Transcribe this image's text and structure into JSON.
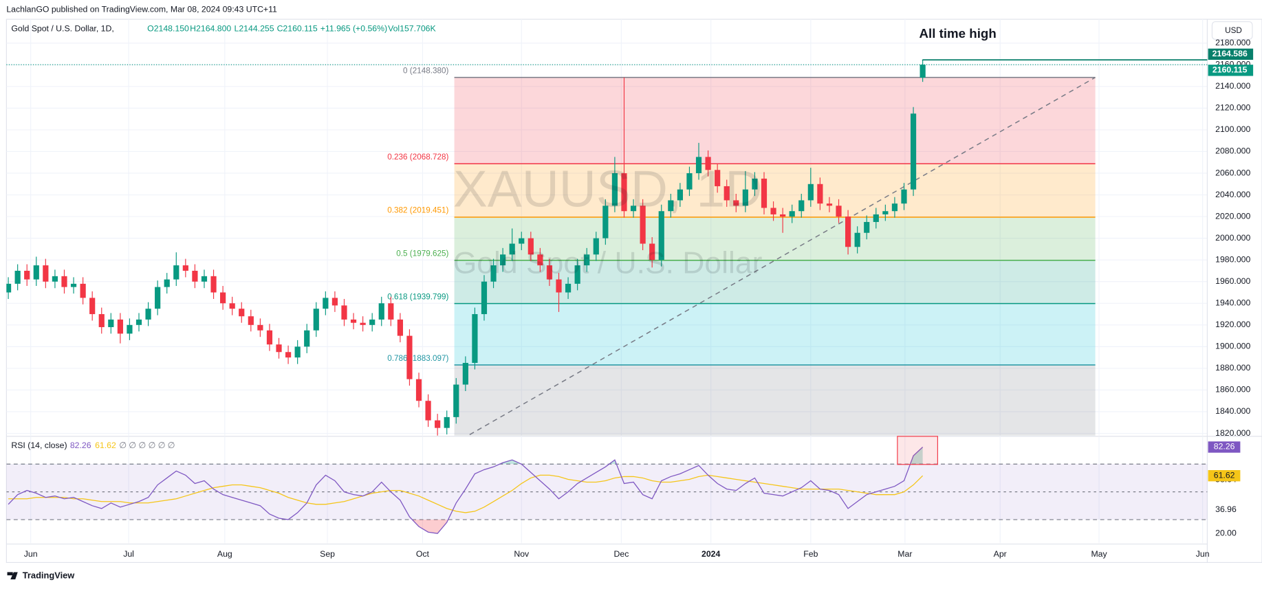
{
  "publisher": "LachlanGO published on TradingView.com, Mar 08, 2024 09:43 UTC+11",
  "brand": "TradingView",
  "currency": "USD",
  "watermark": [
    "XAUUSD, 1D",
    "Gold Spot / U.S. Dollar"
  ],
  "chart_data": [
    {
      "type": "candlestick",
      "title": "Gold Spot / U.S. Dollar, 1D,",
      "legend_values": [
        "O2148.150",
        "H2164.800",
        "L2144.255",
        "C2160.115",
        "+11.965 (+0.56%)",
        "Vol157.706K"
      ],
      "annotation": "All time high",
      "up_color": "#089981",
      "down_color": "#f23645",
      "grid": true,
      "xlim": [
        -0.2,
        128.5
      ],
      "xticks": [
        {
          "value": 2.4,
          "label": "Jun"
        },
        {
          "value": 12.9,
          "label": "Jul"
        },
        {
          "value": 23.2,
          "label": "Aug"
        },
        {
          "value": 34.2,
          "label": "Sep"
        },
        {
          "value": 44.4,
          "label": "Oct"
        },
        {
          "value": 55.0,
          "label": "Nov"
        },
        {
          "value": 65.7,
          "label": "Dec"
        },
        {
          "value": 75.3,
          "label": "2024"
        },
        {
          "value": 86.0,
          "label": "Feb"
        },
        {
          "value": 96.1,
          "label": "Mar"
        },
        {
          "value": 106.3,
          "label": "Apr"
        },
        {
          "value": 116.9,
          "label": "May"
        },
        {
          "value": 128.0,
          "label": "Jun"
        }
      ],
      "ylim": [
        1818,
        2202
      ],
      "yticks": [
        {
          "value": 1820,
          "label": "1820.000"
        },
        {
          "value": 1840,
          "label": "1840.000"
        },
        {
          "value": 1860,
          "label": "1860.000"
        },
        {
          "value": 1880,
          "label": "1880.000"
        },
        {
          "value": 1900,
          "label": "1900.000"
        },
        {
          "value": 1920,
          "label": "1920.000"
        },
        {
          "value": 1940,
          "label": "1940.000"
        },
        {
          "value": 1960,
          "label": "1960.000"
        },
        {
          "value": 1980,
          "label": "1980.000"
        },
        {
          "value": 2000,
          "label": "2000.000"
        },
        {
          "value": 2020,
          "label": "2020.000"
        },
        {
          "value": 2040,
          "label": "2040.000"
        },
        {
          "value": 2060,
          "label": "2060.000"
        },
        {
          "value": 2080,
          "label": "2080.000"
        },
        {
          "value": 2100,
          "label": "2100.000"
        },
        {
          "value": 2120,
          "label": "2120.000"
        },
        {
          "value": 2140,
          "label": "2140.000"
        },
        {
          "value": 2160,
          "label": "2160.000"
        },
        {
          "value": 2180,
          "label": "2180.000"
        }
      ],
      "open": [
        1950,
        1958,
        1970,
        1962,
        1975,
        1960,
        1965,
        1955,
        1958,
        1945,
        1930,
        1918,
        1925,
        1912,
        1920,
        1925,
        1935,
        1955,
        1962,
        1975,
        1970,
        1960,
        1965,
        1950,
        1940,
        1935,
        1928,
        1920,
        1915,
        1902,
        1895,
        1890,
        1900,
        1915,
        1935,
        1945,
        1938,
        1925,
        1922,
        1920,
        1925,
        1940,
        1925,
        1910,
        1870,
        1850,
        1832,
        1825,
        1835,
        1865,
        1885,
        1930,
        1960,
        1975,
        1985,
        1995,
        2000,
        1985,
        1975,
        1962,
        1950,
        1958,
        1975,
        1985,
        2000,
        2030,
        2060,
        2025,
        2030,
        1995,
        1980,
        2025,
        2035,
        2045,
        2060,
        2075,
        2063,
        2048,
        2035,
        2030,
        2045,
        2055,
        2028,
        2022,
        2020,
        2025,
        2035,
        2050,
        2032,
        2030,
        2020,
        1992,
        2005,
        2015,
        2022,
        2025,
        2032,
        2045,
        2148.15
      ],
      "high": [
        1964,
        1976,
        1976,
        1983,
        1981,
        1971,
        1971,
        1964,
        1964,
        1951,
        1936,
        1931,
        1931,
        1926,
        1931,
        1941,
        1961,
        1968,
        1987,
        1981,
        1976,
        1971,
        1971,
        1956,
        1946,
        1941,
        1934,
        1926,
        1921,
        1908,
        1901,
        1906,
        1921,
        1941,
        1951,
        1951,
        1944,
        1931,
        1928,
        1931,
        1946,
        1946,
        1931,
        1916,
        1876,
        1856,
        1838,
        1841,
        1871,
        1891,
        1936,
        1966,
        1981,
        1991,
        2009,
        2006,
        2006,
        1991,
        1981,
        1968,
        1964,
        1981,
        1991,
        2006,
        2036,
        2075,
        2148.38,
        2036,
        2036,
        2001,
        2031,
        2041,
        2051,
        2066,
        2088,
        2081,
        2069,
        2054,
        2041,
        2062,
        2061,
        2061,
        2034,
        2028,
        2031,
        2041,
        2065,
        2056,
        2038,
        2036,
        2026,
        2011,
        2021,
        2028,
        2031,
        2038,
        2051,
        2121,
        2164.8
      ],
      "low": [
        1944,
        1952,
        1956,
        1956,
        1954,
        1954,
        1949,
        1949,
        1939,
        1924,
        1912,
        1912,
        1903,
        1906,
        1914,
        1919,
        1929,
        1949,
        1956,
        1964,
        1954,
        1954,
        1944,
        1934,
        1929,
        1922,
        1914,
        1909,
        1896,
        1889,
        1884,
        1884,
        1894,
        1909,
        1929,
        1932,
        1919,
        1916,
        1914,
        1914,
        1919,
        1919,
        1904,
        1864,
        1844,
        1826,
        1810.7,
        1819,
        1829,
        1859,
        1879,
        1924,
        1954,
        1969,
        1979,
        1989,
        1979,
        1969,
        1956,
        1932,
        1944,
        1952,
        1969,
        1979,
        1994,
        2024,
        2019,
        2019,
        1989,
        1973,
        1974,
        2019,
        2029,
        2039,
        2054,
        2057,
        2042,
        2029,
        2024,
        2024,
        2039,
        2022,
        2016,
        2005,
        2014,
        2019,
        2029,
        2026,
        2024,
        2014,
        1985,
        1986,
        1999,
        2009,
        2016,
        2019,
        2026,
        2039,
        2144.255
      ],
      "close": [
        1958,
        1970,
        1962,
        1975,
        1960,
        1965,
        1955,
        1958,
        1945,
        1930,
        1918,
        1925,
        1912,
        1920,
        1925,
        1935,
        1955,
        1962,
        1975,
        1970,
        1960,
        1965,
        1950,
        1940,
        1935,
        1928,
        1920,
        1915,
        1902,
        1895,
        1890,
        1900,
        1915,
        1935,
        1945,
        1938,
        1925,
        1922,
        1920,
        1925,
        1940,
        1925,
        1910,
        1870,
        1850,
        1832,
        1825,
        1835,
        1865,
        1885,
        1930,
        1960,
        1975,
        1985,
        1995,
        2000,
        1985,
        1975,
        1962,
        1950,
        1958,
        1975,
        1985,
        2000,
        2030,
        2060,
        2025,
        2030,
        1995,
        1980,
        2025,
        2035,
        2045,
        2060,
        2075,
        2063,
        2048,
        2035,
        2030,
        2045,
        2055,
        2028,
        2022,
        2020,
        2025,
        2035,
        2050,
        2032,
        2030,
        2020,
        1992,
        2005,
        2015,
        2022,
        2025,
        2032,
        2045,
        2115,
        2160.115
      ],
      "price_markers": [
        {
          "value": 2164.586,
          "label": "2164.586",
          "color": "#087f6b"
        },
        {
          "value": 2160.115,
          "label": "2160.115",
          "color": "#089981"
        }
      ],
      "fib": {
        "start": 47.8,
        "end": 116.5,
        "anchor_low": 1810.7,
        "levels": [
          {
            "text": "0 (2148.380)",
            "price": 2148.38,
            "color": "#787b86",
            "fill": "#f23645"
          },
          {
            "text": "0.236 (2068.728)",
            "price": 2068.728,
            "color": "#f23645",
            "fill": "#ff9800"
          },
          {
            "text": "0.382 (2019.451)",
            "price": 2019.451,
            "color": "#ff9800",
            "fill": "#4caf50"
          },
          {
            "text": "0.5 (1979.625)",
            "price": 1979.625,
            "color": "#4caf50",
            "fill": "#089981"
          },
          {
            "text": "0.618 (1939.799)",
            "price": 1939.799,
            "color": "#089981",
            "fill": "#00bcd4"
          },
          {
            "text": "0.786 (1883.097)",
            "price": 1883.097,
            "color": "#2196a3",
            "fill": "#787b86"
          }
        ]
      }
    },
    {
      "type": "line",
      "title": "RSI (14, close)",
      "extra": "∅ ∅ ∅ ∅ ∅ ∅",
      "ylim": [
        13,
        90
      ],
      "yticks": [
        {
          "value": 20,
          "label": "20.00"
        },
        {
          "value": 36.96,
          "label": "36.96"
        },
        {
          "value": 58.64,
          "label": "58.64"
        }
      ],
      "levels": [
        70,
        50,
        30
      ],
      "series": [
        {
          "color": "#7e57c2",
          "last_label": "82.26",
          "values": [
            41,
            48,
            51,
            49,
            46,
            47,
            45,
            46,
            43,
            40,
            38,
            42,
            39,
            41,
            43,
            46,
            55,
            60,
            65,
            62,
            56,
            58,
            52,
            48,
            46,
            44,
            42,
            40,
            34,
            31,
            30,
            35,
            42,
            55,
            62,
            58,
            50,
            48,
            47,
            50,
            57,
            50,
            44,
            32,
            25,
            21,
            20,
            28,
            42,
            52,
            63,
            66,
            68,
            71,
            73,
            70,
            64,
            58,
            52,
            45,
            50,
            56,
            60,
            64,
            68,
            73,
            56,
            57,
            48,
            45,
            58,
            61,
            63,
            66,
            69,
            62,
            56,
            52,
            51,
            56,
            60,
            49,
            48,
            47,
            50,
            53,
            58,
            52,
            51,
            48,
            38,
            43,
            48,
            50,
            52,
            54,
            58,
            76,
            82.26
          ]
        },
        {
          "color": "#f5c518",
          "last_label": "61.62",
          "values": [
            45,
            45,
            45,
            46,
            46,
            46,
            46,
            45,
            45,
            44,
            43,
            43,
            43,
            42,
            42,
            42,
            43,
            44,
            45,
            47,
            49,
            51,
            53,
            54,
            55,
            55,
            54,
            53,
            51,
            49,
            46,
            44,
            42,
            41,
            41,
            42,
            43,
            45,
            47,
            49,
            50,
            51,
            51,
            49,
            47,
            44,
            41,
            38,
            36,
            35,
            36,
            39,
            43,
            47,
            51,
            56,
            60,
            62,
            62,
            61,
            59,
            58,
            57,
            57,
            58,
            60,
            61,
            61,
            60,
            58,
            57,
            57,
            58,
            59,
            61,
            62,
            61,
            60,
            59,
            58,
            57,
            56,
            55,
            54,
            53,
            52,
            52,
            52,
            52,
            52,
            51,
            50,
            49,
            48,
            48,
            48,
            50,
            55,
            61.62
          ]
        }
      ]
    }
  ]
}
